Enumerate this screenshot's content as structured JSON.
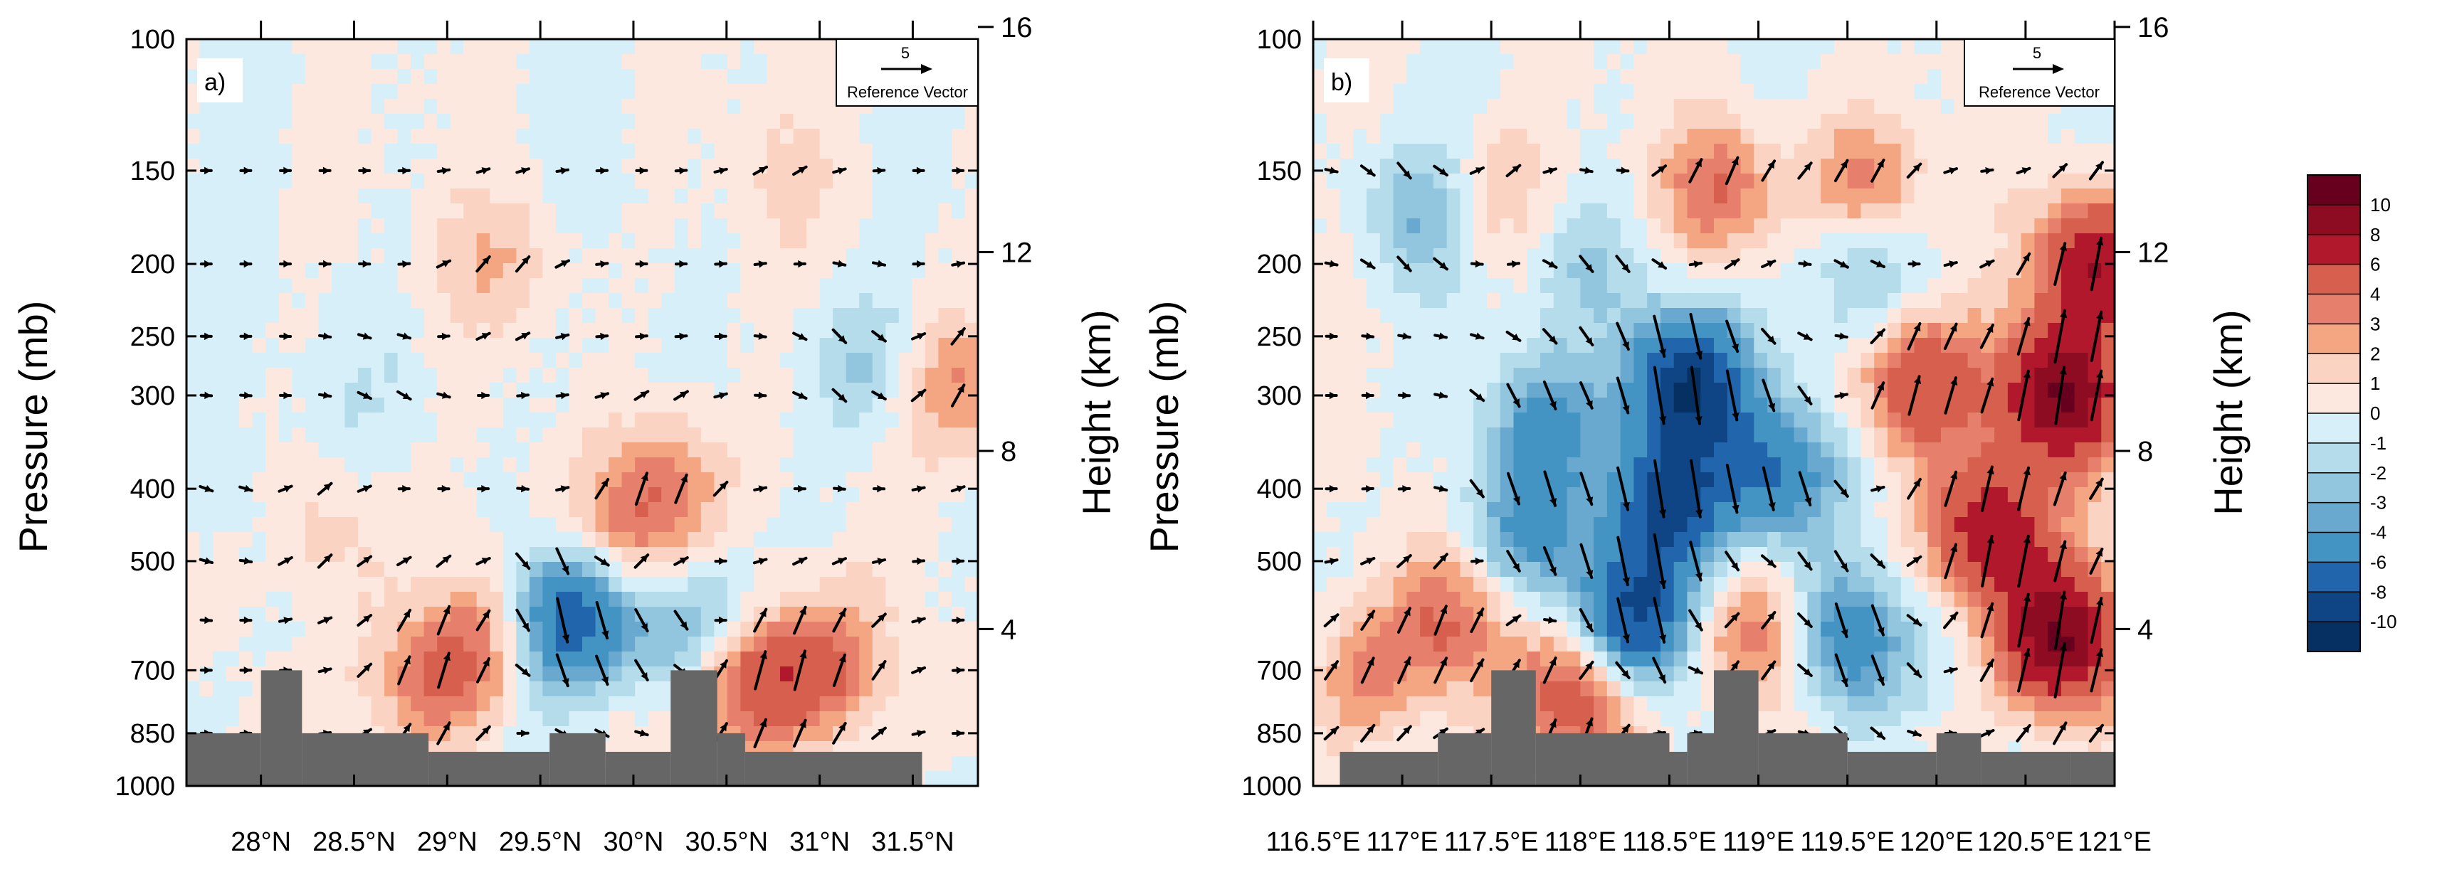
{
  "figure": {
    "colorbar": {
      "levels": [
        "10",
        "8",
        "6",
        "4",
        "3",
        "2",
        "1",
        "0",
        "-1",
        "-2",
        "-3",
        "-4",
        "-6",
        "-8",
        "-10"
      ],
      "colors": [
        "#67001f",
        "#8e0c22",
        "#b2182b",
        "#d6604d",
        "#e6806c",
        "#f4a582",
        "#fbd3c3",
        "#fde8df",
        "#d6eff8",
        "#b4dcea",
        "#92c5de",
        "#6aa9cf",
        "#4393c3",
        "#2166ac",
        "#0f4585",
        "#053061"
      ]
    },
    "vector_color": "#000000",
    "terrain_color": "#666666"
  },
  "chart_data": [
    {
      "type": "heatmap",
      "panel_label": "a)",
      "ylabel_left": "Pressure (mb)",
      "ylabel_right": "Height (km)",
      "pressure_ticks": [
        100,
        150,
        200,
        250,
        300,
        400,
        500,
        700,
        850,
        1000
      ],
      "pressure_tick_labels": [
        "100",
        "150",
        "200",
        "250",
        "300",
        "400",
        "500",
        "700",
        "850",
        "1000"
      ],
      "height_ticks": [
        16,
        12,
        8,
        4
      ],
      "height_tick_labels": [
        "16",
        "12",
        "8",
        "4"
      ],
      "xlim": [
        27.6,
        31.85
      ],
      "x_ticks": [
        28,
        28.5,
        29,
        29.5,
        30,
        30.5,
        31,
        31.5
      ],
      "x_tick_labels": [
        "28°N",
        "28.5°N",
        "29°N",
        "29.5°N",
        "30°N",
        "30.5°N",
        "31°N",
        "31.5°N"
      ],
      "legend": {
        "title": "5",
        "label": "Reference Vector",
        "ref_value": 5
      },
      "vector_levels": [
        150,
        200,
        250,
        300,
        400,
        500,
        600,
        700,
        850
      ],
      "vector_x_count": 20,
      "blobs": [
        {
          "x": 29.6,
          "p": 600,
          "v": -6
        },
        {
          "x": 29.8,
          "p": 560,
          "v": -4
        },
        {
          "x": 30.35,
          "p": 640,
          "v": -6
        },
        {
          "x": 29.2,
          "p": 620,
          "v": 3
        },
        {
          "x": 28.9,
          "p": 720,
          "v": 4
        },
        {
          "x": 29.9,
          "p": 500,
          "v": 4
        },
        {
          "x": 30.15,
          "p": 400,
          "v": 4
        },
        {
          "x": 30.5,
          "p": 700,
          "v": 6
        },
        {
          "x": 30.8,
          "p": 720,
          "v": 3
        },
        {
          "x": 31.1,
          "p": 700,
          "v": 3
        },
        {
          "x": 28.3,
          "p": 450,
          "v": 2
        },
        {
          "x": 31.75,
          "p": 290,
          "v": 3
        },
        {
          "x": 29.3,
          "p": 200,
          "v": 2
        },
        {
          "x": 30.8,
          "p": 150,
          "v": 1
        },
        {
          "x": 31.2,
          "p": 270,
          "v": -2
        },
        {
          "x": 27.9,
          "p": 430,
          "v": -1
        },
        {
          "x": 28.7,
          "p": 300,
          "v": -1
        }
      ],
      "terrain": [
        {
          "x0": 27.6,
          "x1": 28.0,
          "p": 850
        },
        {
          "x0": 28.0,
          "x1": 28.22,
          "p": 700
        },
        {
          "x0": 28.22,
          "x1": 28.9,
          "p": 850
        },
        {
          "x0": 28.9,
          "x1": 29.55,
          "p": 900
        },
        {
          "x0": 29.55,
          "x1": 29.85,
          "p": 850
        },
        {
          "x0": 29.85,
          "x1": 30.2,
          "p": 900
        },
        {
          "x0": 30.2,
          "x1": 30.45,
          "p": 700
        },
        {
          "x0": 30.45,
          "x1": 30.6,
          "p": 850
        },
        {
          "x0": 30.6,
          "x1": 31.55,
          "p": 900
        }
      ]
    },
    {
      "type": "heatmap",
      "panel_label": "b)",
      "ylabel_left": "Pressure (mb)",
      "ylabel_right": "Height (km)",
      "pressure_ticks": [
        100,
        150,
        200,
        250,
        300,
        400,
        500,
        700,
        850,
        1000
      ],
      "pressure_tick_labels": [
        "100",
        "150",
        "200",
        "250",
        "300",
        "400",
        "500",
        "700",
        "850",
        "1000"
      ],
      "height_ticks": [
        16,
        12,
        8,
        4
      ],
      "height_tick_labels": [
        "16",
        "12",
        "8",
        "4"
      ],
      "xlim": [
        116.5,
        121.0
      ],
      "x_ticks": [
        116.5,
        117,
        117.5,
        118,
        118.5,
        119,
        119.5,
        120,
        120.5,
        121
      ],
      "x_tick_labels": [
        "116.5°E",
        "117°E",
        "117.5°E",
        "118°E",
        "118.5°E",
        "119°E",
        "119.5°E",
        "120°E",
        "120.5°E",
        "121°E"
      ],
      "legend": {
        "title": "5",
        "label": "Reference Vector",
        "ref_value": 5
      },
      "vector_levels": [
        150,
        200,
        250,
        300,
        400,
        500,
        600,
        700,
        850
      ],
      "vector_x_count": 22,
      "blobs": [
        {
          "x": 118.6,
          "p": 290,
          "v": -10
        },
        {
          "x": 118.5,
          "p": 420,
          "v": -8
        },
        {
          "x": 118.3,
          "p": 600,
          "v": -8
        },
        {
          "x": 119.1,
          "p": 380,
          "v": -6
        },
        {
          "x": 119.5,
          "p": 640,
          "v": -6
        },
        {
          "x": 117.8,
          "p": 330,
          "v": -4
        },
        {
          "x": 117.7,
          "p": 460,
          "v": -4
        },
        {
          "x": 117.1,
          "p": 170,
          "v": -3
        },
        {
          "x": 118.1,
          "p": 200,
          "v": -2
        },
        {
          "x": 119.6,
          "p": 200,
          "v": -3
        },
        {
          "x": 119.9,
          "p": 290,
          "v": 6
        },
        {
          "x": 120.7,
          "p": 300,
          "v": 10
        },
        {
          "x": 120.7,
          "p": 640,
          "v": 10
        },
        {
          "x": 120.9,
          "p": 200,
          "v": 8
        },
        {
          "x": 120.3,
          "p": 460,
          "v": 8
        },
        {
          "x": 119.6,
          "p": 160,
          "v": 4
        },
        {
          "x": 118.8,
          "p": 160,
          "v": 4
        },
        {
          "x": 119.0,
          "p": 640,
          "v": 4
        },
        {
          "x": 118.0,
          "p": 760,
          "v": 6
        },
        {
          "x": 117.3,
          "p": 600,
          "v": 4
        },
        {
          "x": 116.8,
          "p": 720,
          "v": 3
        },
        {
          "x": 117.5,
          "p": 160,
          "v": 2
        }
      ],
      "terrain": [
        {
          "x0": 116.65,
          "x1": 117.2,
          "p": 900
        },
        {
          "x0": 117.2,
          "x1": 117.5,
          "p": 850
        },
        {
          "x0": 117.5,
          "x1": 117.75,
          "p": 700
        },
        {
          "x0": 117.75,
          "x1": 118.5,
          "p": 850
        },
        {
          "x0": 118.5,
          "x1": 118.6,
          "p": 900
        },
        {
          "x0": 118.6,
          "x1": 118.75,
          "p": 850
        },
        {
          "x0": 118.75,
          "x1": 119.0,
          "p": 700
        },
        {
          "x0": 119.0,
          "x1": 119.5,
          "p": 850
        },
        {
          "x0": 119.5,
          "x1": 120.0,
          "p": 900
        },
        {
          "x0": 120.0,
          "x1": 120.25,
          "p": 850
        },
        {
          "x0": 120.25,
          "x1": 120.75,
          "p": 900
        },
        {
          "x0": 120.75,
          "x1": 121.0,
          "p": 900
        }
      ]
    }
  ]
}
